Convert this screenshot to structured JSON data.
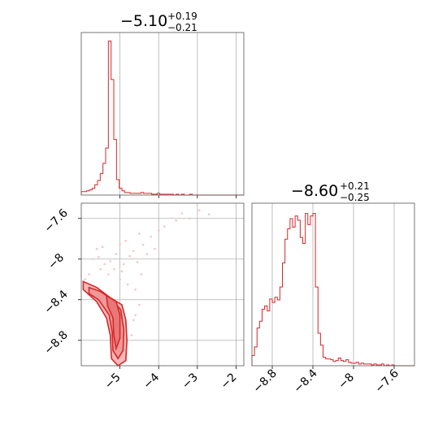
{
  "chart_data": {
    "type": "corner",
    "color": "#d62728",
    "contour_fill": "#f4b8b8",
    "scatter_color": "#f6c3c3",
    "panels": [
      {
        "kind": "histogram",
        "param": "p1",
        "title": {
          "value": "−5.10",
          "plus": "+0.19",
          "minus": "−0.21"
        },
        "xlim": [
          -6.0,
          -1.8
        ],
        "xticks": [
          -5,
          -4,
          -3,
          -2
        ],
        "bins_x": [
          -6.0,
          -5.93,
          -5.86,
          -5.79,
          -5.72,
          -5.65,
          -5.58,
          -5.51,
          -5.44,
          -5.37,
          -5.3,
          -5.23,
          -5.16,
          -5.09,
          -5.02,
          -4.95,
          -4.88,
          -4.81,
          -4.74,
          -4.67,
          -4.6,
          -4.53,
          -4.46,
          -4.39,
          -4.32,
          -4.25,
          -4.18,
          -4.11,
          -4.04,
          -3.97,
          -3.9,
          -3.83,
          -3.76,
          -3.69,
          -3.62,
          -3.55,
          -3.48,
          -3.41,
          -3.34,
          -3.27,
          -3.2,
          -3.13,
          -3.06,
          -2.99,
          -2.92,
          -2.85,
          -2.78,
          -2.71,
          -2.64,
          -2.57,
          -2.5,
          -2.43,
          -2.36,
          -2.29,
          -2.22,
          -2.15,
          -2.08,
          -2.01,
          -1.94,
          -1.87
        ],
        "counts": [
          4,
          4,
          5,
          6,
          8,
          12,
          17,
          25,
          37,
          55,
          180,
          135,
          65,
          18,
          8,
          5,
          3,
          3,
          2,
          2,
          2,
          2,
          3,
          2,
          2,
          2,
          1,
          1,
          2,
          1,
          1,
          1,
          1,
          1,
          0,
          1,
          0,
          1,
          0,
          0,
          1,
          0,
          0,
          0,
          0,
          0,
          0,
          0,
          0,
          0,
          0,
          0,
          0,
          0,
          0,
          0,
          0,
          0,
          0,
          0
        ],
        "ymax": 190
      },
      {
        "kind": "histogram",
        "param": "p2",
        "title": {
          "value": "−8.60",
          "plus": "+0.21",
          "minus": "−0.25"
        },
        "xlim": [
          -9.0,
          -7.4
        ],
        "xticks": [
          -8.8,
          -8.4,
          -8.0,
          -7.6
        ],
        "bins_x": [
          -9.0,
          -8.975,
          -8.95,
          -8.925,
          -8.9,
          -8.875,
          -8.85,
          -8.825,
          -8.8,
          -8.775,
          -8.75,
          -8.725,
          -8.7,
          -8.675,
          -8.65,
          -8.625,
          -8.6,
          -8.575,
          -8.55,
          -8.525,
          -8.5,
          -8.475,
          -8.45,
          -8.425,
          -8.4,
          -8.375,
          -8.35,
          -8.325,
          -8.3,
          -8.275,
          -8.25,
          -8.225,
          -8.2,
          -8.175,
          -8.15,
          -8.125,
          -8.1,
          -8.075,
          -8.05,
          -8.025,
          -8.0,
          -7.975,
          -7.95,
          -7.925,
          -7.9,
          -7.875,
          -7.85,
          -7.825,
          -7.8,
          -7.775,
          -7.75,
          -7.725,
          -7.7,
          -7.675,
          -7.65,
          -7.625,
          -7.6,
          -7.575,
          -7.55,
          -7.525,
          -7.5,
          -7.475,
          -7.45,
          -7.425
        ],
        "counts": [
          12,
          22,
          44,
          52,
          66,
          70,
          64,
          78,
          74,
          80,
          77,
          92,
          120,
          148,
          160,
          172,
          162,
          175,
          170,
          150,
          143,
          178,
          165,
          175,
          178,
          92,
          38,
          24,
          10,
          8,
          8,
          7,
          5,
          6,
          9,
          6,
          5,
          7,
          4,
          3,
          3,
          4,
          2,
          3,
          2,
          2,
          2,
          1,
          2,
          1,
          1,
          2,
          0,
          1,
          0,
          1,
          0,
          0,
          0,
          0,
          0,
          0,
          0,
          0
        ],
        "ymax": 190
      },
      {
        "kind": "2d",
        "params": [
          "p1",
          "p2"
        ],
        "xlim": [
          -6.0,
          -1.8
        ],
        "ylim": [
          -9.05,
          -7.45
        ],
        "xticks": [
          -5,
          -4,
          -3,
          -2
        ],
        "yticks": [
          -7.6,
          -8.0,
          -8.4,
          -8.8
        ],
        "contour_outer": [
          [
            -5.95,
            -8.22
          ],
          [
            -5.6,
            -8.28
          ],
          [
            -5.25,
            -8.38
          ],
          [
            -4.95,
            -8.45
          ],
          [
            -4.85,
            -8.6
          ],
          [
            -4.82,
            -8.8
          ],
          [
            -4.85,
            -9.0
          ],
          [
            -5.05,
            -9.05
          ],
          [
            -5.22,
            -8.98
          ],
          [
            -5.25,
            -8.75
          ],
          [
            -5.35,
            -8.58
          ],
          [
            -5.6,
            -8.42
          ],
          [
            -5.95,
            -8.3
          ]
        ],
        "contour_mid": [
          [
            -5.8,
            -8.28
          ],
          [
            -5.5,
            -8.32
          ],
          [
            -5.2,
            -8.4
          ],
          [
            -4.98,
            -8.5
          ],
          [
            -4.9,
            -8.7
          ],
          [
            -4.92,
            -8.9
          ],
          [
            -5.05,
            -8.98
          ],
          [
            -5.18,
            -8.9
          ],
          [
            -5.2,
            -8.72
          ],
          [
            -5.28,
            -8.55
          ],
          [
            -5.55,
            -8.4
          ],
          [
            -5.8,
            -8.34
          ]
        ],
        "contour_inner": [
          [
            -5.35,
            -8.36
          ],
          [
            -5.1,
            -8.42
          ],
          [
            -5.0,
            -8.55
          ],
          [
            -5.0,
            -8.78
          ],
          [
            -5.1,
            -8.88
          ],
          [
            -5.16,
            -8.75
          ],
          [
            -5.18,
            -8.58
          ],
          [
            -5.32,
            -8.46
          ]
        ],
        "scatter": [
          [
            -5.7,
            -8.0
          ],
          [
            -5.55,
            -7.98
          ],
          [
            -5.4,
            -8.05
          ],
          [
            -5.25,
            -8.02
          ],
          [
            -5.1,
            -7.95
          ],
          [
            -4.9,
            -8.05
          ],
          [
            -4.75,
            -7.97
          ],
          [
            -4.65,
            -7.92
          ],
          [
            -4.55,
            -8.03
          ],
          [
            -4.4,
            -7.86
          ],
          [
            -4.2,
            -7.78
          ],
          [
            -4.0,
            -7.72
          ],
          [
            -3.85,
            -7.68
          ],
          [
            -3.55,
            -7.62
          ],
          [
            -3.4,
            -7.55
          ],
          [
            -3.2,
            -7.6
          ],
          [
            -2.95,
            -7.52
          ],
          [
            -2.7,
            -7.56
          ],
          [
            -5.5,
            -8.1
          ],
          [
            -5.3,
            -8.15
          ],
          [
            -5.0,
            -8.2
          ],
          [
            -4.8,
            -8.25
          ],
          [
            -4.6,
            -8.3
          ],
          [
            -4.5,
            -8.45
          ],
          [
            -4.6,
            -8.55
          ],
          [
            -4.7,
            -8.75
          ],
          [
            -4.65,
            -8.6
          ],
          [
            -5.8,
            -8.15
          ],
          [
            -5.9,
            -8.2
          ],
          [
            -4.95,
            -8.12
          ],
          [
            -5.15,
            -8.1
          ],
          [
            -4.45,
            -8.15
          ],
          [
            -4.3,
            -7.95
          ],
          [
            -4.1,
            -7.9
          ],
          [
            -5.6,
            -7.9
          ],
          [
            -5.45,
            -7.88
          ],
          [
            -5.0,
            -7.85
          ],
          [
            -4.85,
            -7.82
          ],
          [
            -4.5,
            -7.75
          ]
        ]
      }
    ]
  }
}
